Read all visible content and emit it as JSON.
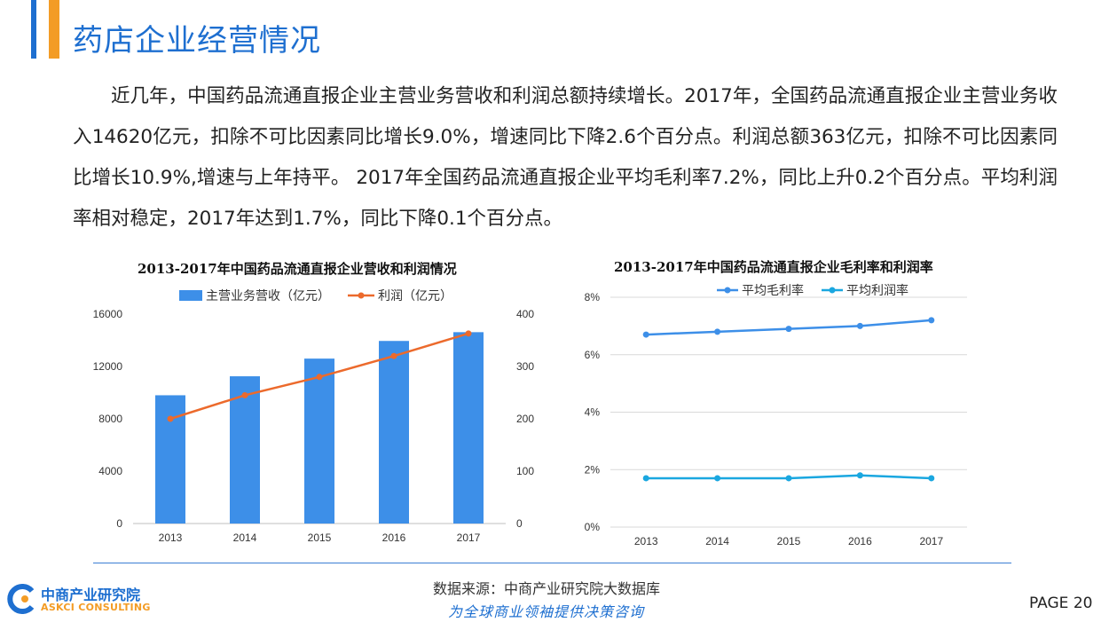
{
  "header": {
    "title": "药店企业经营情况"
  },
  "paragraph": "近几年，中国药品流通直报企业主营业务营收和利润总额持续增长。2017年，全国药品流通直报企业主营业务收入14620亿元，扣除不可比因素同比增长9.0%，增速同比下降2.6个百分点。利润总额363亿元，扣除不可比因素同比增长10.9%,增速与上年持平。 2017年全国药品流通直报企业平均毛利率7.2%，同比上升0.2个百分点。平均利润率相对稳定，2017年达到1.7%，同比下降0.1个百分点。",
  "footer": {
    "source": "数据来源：中商产业研究院大数据库",
    "slogan": "为全球商业领袖提供决策咨询",
    "page": "PAGE  20",
    "logo_cn": "中商产业研究院",
    "logo_en": "ASKCI CONSULTING"
  },
  "chart_data": [
    {
      "type": "bar",
      "title": "2013-2017年中国药品流通直报企业营收和利润情况",
      "categories": [
        "2013",
        "2014",
        "2015",
        "2016",
        "2017"
      ],
      "series": [
        {
          "name": "主营业务营收（亿元）",
          "type": "bar",
          "axis": "left",
          "color": "#3d8fe8",
          "values": [
            9800,
            11250,
            12600,
            13950,
            14620
          ]
        },
        {
          "name": "利润（亿元）",
          "type": "line",
          "axis": "right",
          "color": "#ec6a2c",
          "values": [
            200,
            245,
            280,
            320,
            363
          ]
        }
      ],
      "ylim_left": [
        0,
        16000
      ],
      "yticks_left": [
        "0",
        "4000",
        "8000",
        "12000",
        "16000"
      ],
      "ylim_right": [
        0,
        400
      ],
      "yticks_right": [
        "0",
        "100",
        "200",
        "300",
        "400"
      ],
      "legend": "top"
    },
    {
      "type": "line",
      "title": "2013-2017年中国药品流通直报企业毛利率和利润率",
      "categories": [
        "2013",
        "2014",
        "2015",
        "2016",
        "2017"
      ],
      "series": [
        {
          "name": "平均毛利率",
          "color": "#3d8fe8",
          "values": [
            6.7,
            6.8,
            6.9,
            7.0,
            7.2
          ]
        },
        {
          "name": "平均利润率",
          "color": "#1aa7e0",
          "values": [
            1.7,
            1.7,
            1.7,
            1.8,
            1.7
          ]
        }
      ],
      "ylim": [
        0,
        8
      ],
      "yticks": [
        "0%",
        "2%",
        "4%",
        "6%",
        "8%"
      ],
      "grid": true,
      "legend": "top"
    }
  ]
}
